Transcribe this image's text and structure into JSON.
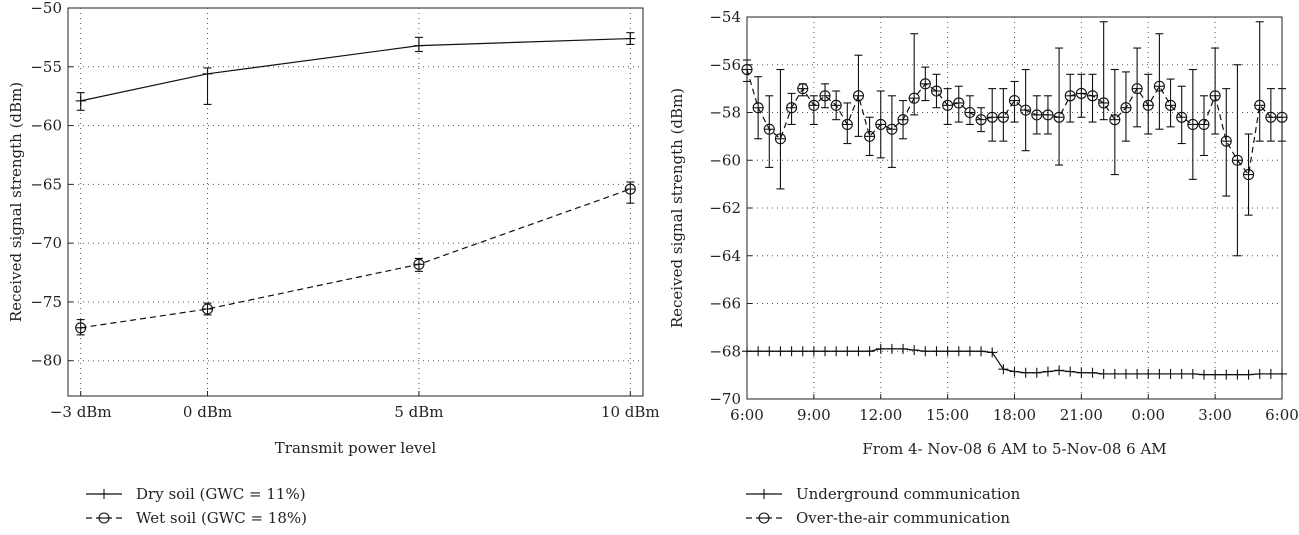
{
  "chart_data": [
    {
      "type": "line",
      "xlabel": "Transmit power level",
      "ylabel": "Received signal strength (dBm)",
      "categories": [
        "−3 dBm",
        "0 dBm",
        "5 dBm",
        "10 dBm"
      ],
      "x": [
        -3,
        0,
        5,
        10
      ],
      "xlim": [
        -3.3,
        10.3
      ],
      "ylim": [
        -83,
        -50
      ],
      "yticks": [
        -50,
        -55,
        -60,
        -65,
        -70,
        -75,
        -80
      ],
      "ytick_labels": [
        "−50",
        "−55",
        "−60",
        "−65",
        "−70",
        "−75",
        "−80"
      ],
      "grid": true,
      "legend_position": "below",
      "series": [
        {
          "name": "Dry soil (GWC = 11%)",
          "marker": "plus",
          "linestyle": "solid",
          "values": [
            -57.9,
            -55.6,
            -53.2,
            -52.6
          ],
          "err_low": [
            -58.7,
            -58.2,
            -53.7,
            -53.1
          ],
          "err_high": [
            -57.2,
            -55.1,
            -52.5,
            -52.1
          ]
        },
        {
          "name": "Wet soil (GWC = 18%)",
          "marker": "circle",
          "linestyle": "dashed",
          "values": [
            -77.2,
            -75.6,
            -71.8,
            -65.4
          ],
          "err_low": [
            -77.8,
            -76.1,
            -72.4,
            -66.6
          ],
          "err_high": [
            -76.5,
            -75.1,
            -71.3,
            -64.8
          ]
        }
      ]
    },
    {
      "type": "line",
      "xlabel": "From 4- Nov-08 6 AM to 5-Nov-08 6 AM",
      "ylabel": "Received signal strength (dBm)",
      "xlim": [
        6,
        30
      ],
      "ylim": [
        -70,
        -54
      ],
      "xticks": [
        6,
        9,
        12,
        15,
        18,
        21,
        24,
        27,
        30
      ],
      "xtick_labels": [
        "6:00",
        "9:00",
        "12:00",
        "15:00",
        "18:00",
        "21:00",
        "0:00",
        "3:00",
        "6:00"
      ],
      "yticks": [
        -54,
        -56,
        -58,
        -60,
        -62,
        -64,
        -66,
        -68,
        -70
      ],
      "ytick_labels": [
        "−54",
        "−56",
        "−58",
        "−60",
        "−62",
        "−64",
        "−66",
        "−68",
        "−70"
      ],
      "grid": true,
      "legend_position": "below",
      "series": [
        {
          "name": "Underground communication",
          "marker": "plus",
          "linestyle": "solid",
          "x": [
            6,
            6.5,
            7,
            7.5,
            8,
            8.5,
            9,
            9.5,
            10,
            10.5,
            11,
            11.5,
            12,
            12.5,
            13,
            13.5,
            14,
            14.5,
            15,
            15.5,
            16,
            16.5,
            17,
            17.5,
            18,
            18.5,
            19,
            19.5,
            20,
            20.5,
            21,
            21.5,
            22,
            22.5,
            23,
            23.5,
            24,
            24.5,
            25,
            25.5,
            26,
            26.5,
            27,
            27.5,
            28,
            28.5,
            29,
            29.5,
            30
          ],
          "values": [
            -68,
            -68,
            -68,
            -68,
            -68,
            -68,
            -68,
            -68,
            -68,
            -68,
            -68,
            -68,
            -67.9,
            -67.9,
            -67.9,
            -67.95,
            -68,
            -68,
            -68,
            -68,
            -68,
            -68,
            -68.05,
            -68.75,
            -68.85,
            -68.9,
            -68.9,
            -68.85,
            -68.8,
            -68.85,
            -68.9,
            -68.9,
            -68.95,
            -68.95,
            -68.95,
            -68.95,
            -68.95,
            -68.95,
            -68.95,
            -68.95,
            -68.95,
            -68.98,
            -68.98,
            -68.98,
            -68.98,
            -68.98,
            -68.95,
            -68.95,
            -68.95
          ]
        },
        {
          "name": "Over-the-air communication",
          "marker": "circle",
          "linestyle": "dashed",
          "x": [
            6,
            6.5,
            7,
            7.5,
            8,
            8.5,
            9,
            9.5,
            10,
            10.5,
            11,
            11.5,
            12,
            12.5,
            13,
            13.5,
            14,
            14.5,
            15,
            15.5,
            16,
            16.5,
            17,
            17.5,
            18,
            18.5,
            19,
            19.5,
            20,
            20.5,
            21,
            21.5,
            22,
            22.5,
            23,
            23.5,
            24,
            24.5,
            25,
            25.5,
            26,
            26.5,
            27,
            27.5,
            28,
            28.5,
            29,
            29.5,
            30
          ],
          "values": [
            -56.2,
            -57.8,
            -58.7,
            -59.1,
            -57.8,
            -57.0,
            -57.7,
            -57.3,
            -57.7,
            -58.5,
            -57.3,
            -59.0,
            -58.5,
            -58.7,
            -58.3,
            -57.4,
            -56.8,
            -57.1,
            -57.7,
            -57.6,
            -58.0,
            -58.3,
            -58.2,
            -58.2,
            -57.5,
            -57.9,
            -58.1,
            -58.1,
            -58.2,
            -57.3,
            -57.2,
            -57.3,
            -57.6,
            -58.3,
            -57.8,
            -57.0,
            -57.7,
            -56.9,
            -57.7,
            -58.2,
            -58.5,
            -58.5,
            -57.3,
            -59.2,
            -60.0,
            -60.6,
            -57.7,
            -58.2,
            -58.2
          ],
          "err_low": [
            -56.7,
            -59.1,
            -60.3,
            -61.2,
            -58.5,
            -57.3,
            -58.5,
            -57.8,
            -58.3,
            -59.3,
            -59.0,
            -59.8,
            -59.9,
            -60.3,
            -59.1,
            -58.1,
            -57.5,
            -57.8,
            -58.5,
            -58.4,
            -58.5,
            -58.8,
            -59.2,
            -59.2,
            -58.4,
            -59.6,
            -58.9,
            -58.9,
            -60.2,
            -58.4,
            -58.2,
            -58.4,
            -58.3,
            -60.6,
            -59.2,
            -58.6,
            -58.9,
            -58.7,
            -58.6,
            -59.3,
            -60.8,
            -59.8,
            -58.9,
            -61.5,
            -64.0,
            -62.3,
            -59.2,
            -59.2,
            -59.2
          ],
          "err_high": [
            -55.8,
            -56.5,
            -57.3,
            -56.2,
            -57.2,
            -56.8,
            -57.3,
            -56.8,
            -57.1,
            -57.6,
            -55.6,
            -58.2,
            -57.1,
            -57.3,
            -57.5,
            -54.7,
            -56.1,
            -56.4,
            -57.0,
            -56.9,
            -57.3,
            -57.8,
            -57.0,
            -57.0,
            -56.7,
            -56.2,
            -57.3,
            -57.3,
            -55.3,
            -56.4,
            -56.4,
            -56.4,
            -54.2,
            -56.2,
            -56.3,
            -55.3,
            -56.4,
            -54.7,
            -56.6,
            -56.9,
            -56.2,
            -57.3,
            -55.3,
            -57.0,
            -56.0,
            -58.9,
            -54.2,
            -57.0,
            -57.0
          ]
        }
      ]
    }
  ]
}
